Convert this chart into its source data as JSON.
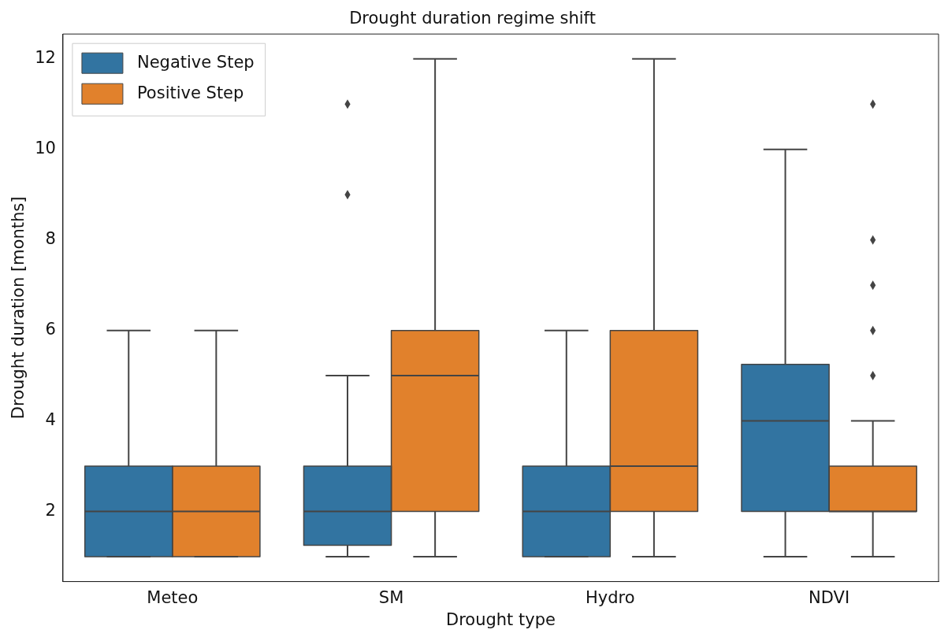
{
  "chart_data": {
    "type": "box",
    "title": "Drought duration regime shift",
    "xlabel": "Drought type",
    "ylabel": "Drought duration [months]",
    "categories": [
      "Meteo",
      "SM",
      "Hydro",
      "NDVI"
    ],
    "ylim": [
      0.45,
      12.55
    ],
    "yticks": [
      2,
      4,
      6,
      8,
      10,
      12
    ],
    "grid": false,
    "legend": "top left",
    "marker": "diamond",
    "series": [
      {
        "name": "Negative Step",
        "color": "#3274a1",
        "boxes": [
          {
            "low": 1,
            "q1": 1,
            "median": 2,
            "q3": 3,
            "high": 6
          },
          {
            "low": 1,
            "q1": 1.25,
            "median": 2,
            "q3": 3,
            "high": 5,
            "outliers": [
              9,
              11
            ]
          },
          {
            "low": 1,
            "q1": 1,
            "median": 2,
            "q3": 3,
            "high": 6
          },
          {
            "low": 1,
            "q1": 2,
            "median": 4,
            "q3": 5.25,
            "high": 10
          }
        ]
      },
      {
        "name": "Positive Step",
        "color": "#e1812c",
        "boxes": [
          {
            "low": 1,
            "q1": 1,
            "median": 2,
            "q3": 3,
            "high": 6
          },
          {
            "low": 1,
            "q1": 2,
            "median": 5,
            "q3": 6,
            "high": 12
          },
          {
            "low": 1,
            "q1": 2,
            "median": 3,
            "q3": 6,
            "high": 12
          },
          {
            "low": 1,
            "q1": 2,
            "median": 2,
            "q3": 3,
            "high": 4,
            "outliers": [
              5,
              6,
              7,
              8,
              11
            ]
          }
        ]
      }
    ]
  }
}
